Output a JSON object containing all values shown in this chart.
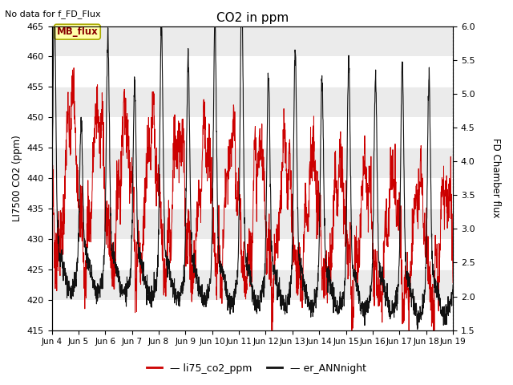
{
  "title": "CO2 in ppm",
  "top_left_text": "No data for f_FD_Flux",
  "ylabel_left": "LI7500 CO2 (ppm)",
  "ylabel_right": "FD Chamber flux",
  "ylim_left": [
    415,
    465
  ],
  "ylim_right": [
    1.5,
    6.0
  ],
  "yticks_left": [
    415,
    420,
    425,
    430,
    435,
    440,
    445,
    450,
    455,
    460,
    465
  ],
  "yticks_right": [
    1.5,
    2.0,
    2.5,
    3.0,
    3.5,
    4.0,
    4.5,
    5.0,
    5.5,
    6.0
  ],
  "xtick_labels": [
    "Jun 4",
    "Jun 5",
    "Jun 6",
    "Jun 7",
    "Jun 8",
    "Jun 9",
    "Jun 10",
    "Jun 11",
    "Jun 12",
    "Jun 13",
    "Jun 14",
    "Jun 15",
    "Jun 16",
    "Jun 17",
    "Jun 18",
    "Jun 19"
  ],
  "legend_label_red": "li75_co2_ppm",
  "legend_label_black": "er_ANNnight",
  "box_label": "MB_flux",
  "box_color": "#ffffaa",
  "box_edge_color": "#aaaa00",
  "background_light": "#ebebeb",
  "line_color_red": "#cc0000",
  "line_color_black": "#111111",
  "n_days": 15,
  "pts_per_day": 144
}
